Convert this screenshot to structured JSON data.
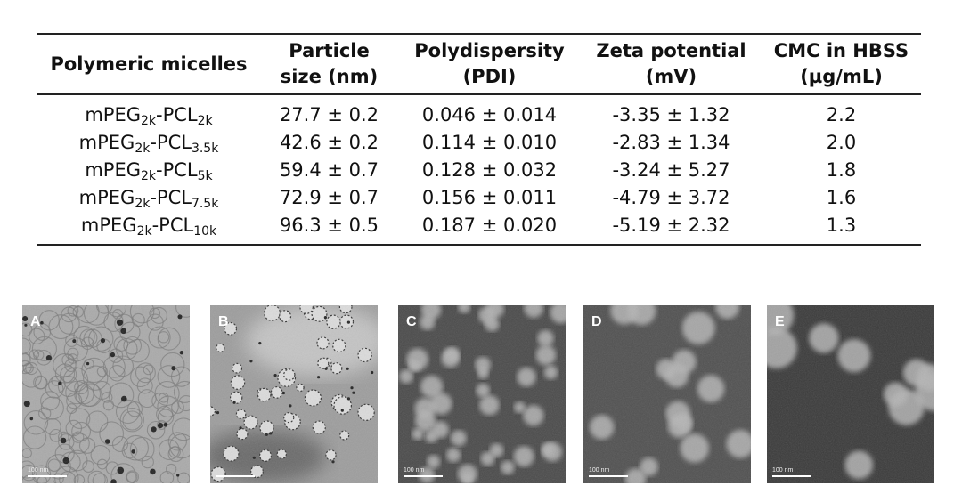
{
  "table": {
    "headers": [
      {
        "line1": "Polymeric micelles",
        "line2": ""
      },
      {
        "line1": "Particle",
        "line2": "size (nm)"
      },
      {
        "line1": "Polydispersity",
        "line2": "(PDI)"
      },
      {
        "line1": "Zeta potential",
        "line2": "(mV)"
      },
      {
        "line1": "CMC in HBSS",
        "line2": "(µg/mL)"
      }
    ],
    "rows": [
      {
        "name": {
          "a": "mPEG",
          "a_sub": "2k",
          "b": "-PCL",
          "b_sub": "2k"
        },
        "size": "27.7 ± 0.2",
        "pdi": "0.046 ± 0.014",
        "zeta": "-3.35 ± 1.32",
        "cmc": "2.2"
      },
      {
        "name": {
          "a": "mPEG",
          "a_sub": "2k",
          "b": "-PCL",
          "b_sub": "3.5k"
        },
        "size": "42.6 ± 0.2",
        "pdi": "0.114 ± 0.010",
        "zeta": "-2.83 ± 1.34",
        "cmc": "2.0"
      },
      {
        "name": {
          "a": "mPEG",
          "a_sub": "2k",
          "b": "-PCL",
          "b_sub": "5k"
        },
        "size": "59.4 ± 0.7",
        "pdi": "0.128 ± 0.032",
        "zeta": "-3.24 ± 5.27",
        "cmc": "1.8"
      },
      {
        "name": {
          "a": "mPEG",
          "a_sub": "2k",
          "b": "-PCL",
          "b_sub": "7.5k"
        },
        "size": "72.9 ± 0.7",
        "pdi": "0.156 ± 0.011",
        "zeta": "-4.79 ± 3.72",
        "cmc": "1.6"
      },
      {
        "name": {
          "a": "mPEG",
          "a_sub": "2k",
          "b": "-PCL",
          "b_sub": "10k"
        },
        "size": "96.3 ± 0.5",
        "pdi": "0.187 ± 0.020",
        "zeta": "-5.19 ± 2.32",
        "cmc": "1.3"
      }
    ]
  },
  "panels": [
    {
      "letter": "A",
      "scale_label": "100 nm",
      "bg": "#aaaaaa"
    },
    {
      "letter": "B",
      "scale_label": "",
      "bg": "#9d9d9d"
    },
    {
      "letter": "C",
      "scale_label": "100 nm",
      "bg": "#4a4a4a"
    },
    {
      "letter": "D",
      "scale_label": "100 nm",
      "bg": "#505050"
    },
    {
      "letter": "E",
      "scale_label": "100 nm",
      "bg": "#3a3a3a"
    }
  ]
}
